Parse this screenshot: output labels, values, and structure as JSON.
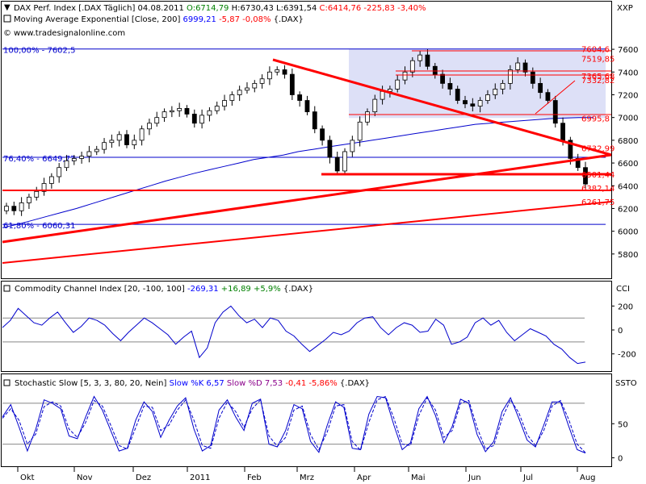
{
  "header": {
    "main": {
      "icon": "caret-down-icon",
      "parts": [
        {
          "text": "DAX Perf. Index [.DAX  Täglich] 04.08.2011 ",
          "color": "#000000"
        },
        {
          "text": "O:6714,79",
          "color": "#008000"
        },
        {
          "text": " H:6730,43 L:6391,54 ",
          "color": "#000000"
        },
        {
          "text": "C:6414,76 -225,83 -3,40%",
          "color": "#ff0000"
        }
      ]
    },
    "ma": {
      "icon": "checkbox-icon",
      "parts": [
        {
          "text": "Moving Average Exponential [Close, 200] ",
          "color": "#000000"
        },
        {
          "text": "6999,21",
          "color": "#0000ff"
        },
        {
          "text": " -5,87 -0,08% ",
          "color": "#ff0000"
        },
        {
          "text": "{.DAX}",
          "color": "#000000"
        }
      ]
    },
    "source": {
      "icon": "copyright-icon",
      "text": "www.tradesignalonline.com"
    },
    "symbol": "XXP"
  },
  "cci_panel": {
    "parts": [
      {
        "text": "Commodity Channel Index [20, -100, 100] ",
        "color": "#000000"
      },
      {
        "text": "-269,31",
        "color": "#0000ff"
      },
      {
        "text": " +16,89 +5,9% ",
        "color": "#008000"
      },
      {
        "text": "{.DAX}",
        "color": "#000000"
      }
    ],
    "symbol": "CCI"
  },
  "stoch_panel": {
    "parts": [
      {
        "text": "Stochastic Slow [5, 3, 3, 80, 20, Nein] ",
        "color": "#000000"
      },
      {
        "text": "Slow %K 6,57",
        "color": "#0000ff"
      },
      {
        "text": " Slow %D 7,53 ",
        "color": "#8b008b"
      },
      {
        "text": "-0,41 -5,86% ",
        "color": "#ff0000"
      },
      {
        "text": "{.DAX}",
        "color": "#000000"
      }
    ],
    "symbol": "SSTO"
  },
  "colors": {
    "price": "#000000",
    "trend": "#ff0000",
    "indicator": "#0000cc",
    "ma": "#0000cc",
    "fib": "#0000cc",
    "box": "#dde0f7"
  },
  "chart_data": [
    {
      "type": "candlestick",
      "y_axis": {
        "ticks": [
          "7600",
          "7400",
          "7200",
          "7000",
          "6800",
          "6600",
          "6400",
          "6200",
          "6000",
          "5800"
        ],
        "range": [
          5650,
          7700
        ]
      },
      "x_axis": {
        "labels": [
          "Okt",
          "Nov",
          "Dez",
          "2011",
          "Feb",
          "Mrz",
          "Apr",
          "Mai",
          "Jun",
          "Jul",
          "Aug"
        ]
      },
      "closes": [
        6220,
        6180,
        6250,
        6300,
        6350,
        6420,
        6480,
        6560,
        6620,
        6640,
        6660,
        6700,
        6720,
        6780,
        6800,
        6850,
        6760,
        6800,
        6900,
        6950,
        7000,
        7050,
        7060,
        7080,
        7030,
        6950,
        7020,
        7060,
        7100,
        7150,
        7200,
        7240,
        7260,
        7300,
        7340,
        7400,
        7420,
        7380,
        7200,
        7150,
        7050,
        6900,
        6800,
        6650,
        6530,
        6700,
        6800,
        6960,
        7050,
        7160,
        7230,
        7250,
        7330,
        7400,
        7500,
        7550,
        7450,
        7380,
        7300,
        7250,
        7150,
        7120,
        7100,
        7150,
        7200,
        7250,
        7300,
        7420,
        7480,
        7400,
        7300,
        7220,
        7150,
        6950,
        6800,
        6640,
        6560,
        6415
      ],
      "ema200": [
        6030,
        6060,
        6095,
        6130,
        6165,
        6200,
        6240,
        6280,
        6320,
        6360,
        6400,
        6440,
        6475,
        6510,
        6540,
        6570,
        6600,
        6630,
        6650,
        6670,
        6700,
        6720,
        6740,
        6760,
        6780,
        6800,
        6820,
        6840,
        6860,
        6880,
        6900,
        6920,
        6940,
        6950,
        6960,
        6970,
        6980,
        6990,
        6995,
        7000,
        6999
      ],
      "fibonacci": [
        {
          "label": "100,00% - 7602,5",
          "value": 7602.5
        },
        {
          "label": "76,40% - 6649,77",
          "value": 6649.77
        },
        {
          "label": "61,80% - 6060,31",
          "value": 6060.31
        }
      ],
      "levels": [
        {
          "label": "7604,6",
          "value": 7604.6
        },
        {
          "label": "7519,85",
          "value": 7519.85
        },
        {
          "label": "7365,68",
          "value": 7365.68
        },
        {
          "label": "7332,82",
          "value": 7332.82
        },
        {
          "label": "6995,8",
          "value": 6995.8
        },
        {
          "label": "6732,99",
          "value": 6732.99
        },
        {
          "label": "6501,44",
          "value": 6501.44
        },
        {
          "label": "6382,14",
          "value": 6382.14
        },
        {
          "label": "6261,75",
          "value": 6261.75
        }
      ]
    },
    {
      "type": "line",
      "name": "Commodity Channel Index",
      "y_axis": {
        "ticks": [
          "200",
          "0",
          "-200"
        ],
        "range": [
          -330,
          290
        ]
      },
      "reference_lines": [
        100,
        -100
      ],
      "values": [
        20,
        80,
        180,
        120,
        60,
        40,
        100,
        150,
        60,
        -20,
        30,
        100,
        80,
        40,
        -30,
        -90,
        -20,
        40,
        100,
        60,
        10,
        -40,
        -120,
        -60,
        -10,
        -230,
        -150,
        60,
        150,
        200,
        120,
        60,
        90,
        20,
        100,
        80,
        -10,
        -50,
        -120,
        -180,
        -130,
        -80,
        -20,
        -40,
        -10,
        60,
        100,
        110,
        20,
        -40,
        20,
        60,
        40,
        -20,
        -10,
        90,
        40,
        -120,
        -100,
        -60,
        60,
        100,
        40,
        80,
        -20,
        -90,
        -40,
        10,
        -20,
        -50,
        -120,
        -160,
        -230,
        -280,
        -269
      ]
    },
    {
      "type": "line",
      "name": "Stochastic Slow",
      "y_axis": {
        "ticks": [
          "50",
          "0"
        ],
        "range": [
          -10,
          100
        ]
      },
      "k_values": [
        60,
        78,
        45,
        10,
        42,
        85,
        80,
        72,
        32,
        28,
        60,
        90,
        70,
        40,
        10,
        14,
        55,
        82,
        68,
        30,
        55,
        76,
        88,
        42,
        10,
        18,
        70,
        85,
        60,
        40,
        80,
        86,
        20,
        16,
        40,
        78,
        72,
        24,
        8,
        48,
        82,
        74,
        14,
        12,
        64,
        90,
        88,
        48,
        12,
        22,
        72,
        90,
        62,
        22,
        46,
        86,
        80,
        34,
        9,
        24,
        68,
        88,
        58,
        26,
        16,
        48,
        82,
        82,
        46,
        12,
        7
      ],
      "d_values": [
        58,
        72,
        55,
        20,
        35,
        75,
        82,
        76,
        42,
        30,
        52,
        84,
        76,
        48,
        18,
        13,
        44,
        76,
        74,
        40,
        48,
        70,
        85,
        55,
        18,
        14,
        58,
        82,
        68,
        45,
        72,
        85,
        32,
        17,
        30,
        70,
        76,
        34,
        12,
        38,
        76,
        78,
        24,
        11,
        52,
        85,
        90,
        58,
        20,
        18,
        62,
        88,
        70,
        30,
        40,
        80,
        84,
        44,
        13,
        18,
        58,
        85,
        66,
        34,
        18,
        40,
        76,
        84,
        56,
        20,
        7.53
      ]
    }
  ]
}
